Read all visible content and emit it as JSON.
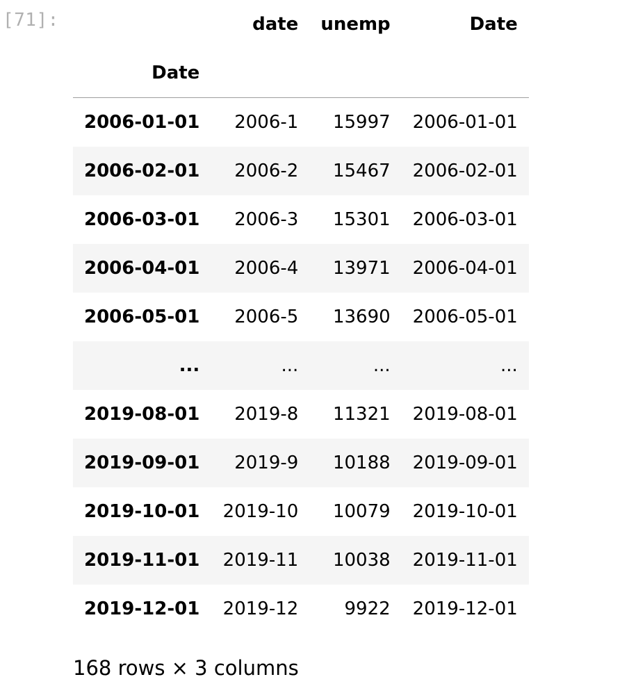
{
  "cell": {
    "prompt": "[71]:"
  },
  "table": {
    "columns": [
      "",
      "date",
      "unemp",
      "Date"
    ],
    "index_name": "Date",
    "rows": [
      {
        "index": "2006-01-01",
        "date": "2006-1",
        "unemp": "15997",
        "Date": "2006-01-01"
      },
      {
        "index": "2006-02-01",
        "date": "2006-2",
        "unemp": "15467",
        "Date": "2006-02-01"
      },
      {
        "index": "2006-03-01",
        "date": "2006-3",
        "unemp": "15301",
        "Date": "2006-03-01"
      },
      {
        "index": "2006-04-01",
        "date": "2006-4",
        "unemp": "13971",
        "Date": "2006-04-01"
      },
      {
        "index": "2006-05-01",
        "date": "2006-5",
        "unemp": "13690",
        "Date": "2006-05-01"
      },
      {
        "index": "...",
        "date": "...",
        "unemp": "...",
        "Date": "..."
      },
      {
        "index": "2019-08-01",
        "date": "2019-8",
        "unemp": "11321",
        "Date": "2019-08-01"
      },
      {
        "index": "2019-09-01",
        "date": "2019-9",
        "unemp": "10188",
        "Date": "2019-09-01"
      },
      {
        "index": "2019-10-01",
        "date": "2019-10",
        "unemp": "10079",
        "Date": "2019-10-01"
      },
      {
        "index": "2019-11-01",
        "date": "2019-11",
        "unemp": "10038",
        "Date": "2019-11-01"
      },
      {
        "index": "2019-12-01",
        "date": "2019-12",
        "unemp": "9922",
        "Date": "2019-12-01"
      }
    ],
    "shape": "168 rows × 3 columns"
  }
}
